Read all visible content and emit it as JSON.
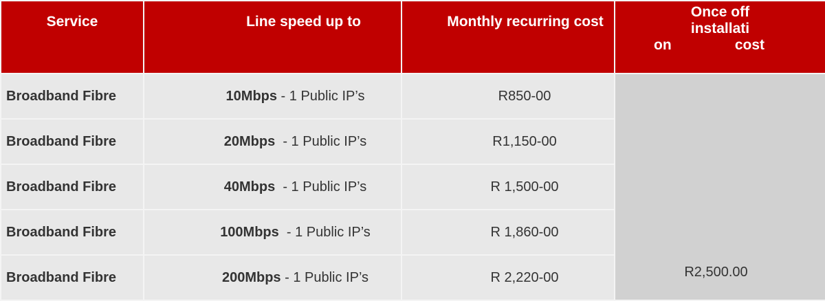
{
  "header": {
    "service": "Service",
    "line_speed": "Line speed up to",
    "monthly": "Monthly recurring cost",
    "once_off_line1": "Once off",
    "once_off_line2": "installati",
    "once_off_line3a": "on",
    "once_off_line3b": "cost"
  },
  "rows": [
    {
      "service": "Broadband Fibre",
      "speed": "10Mbps",
      "speed_rest": " - 1 Public IP’s",
      "monthly": "R850-00"
    },
    {
      "service": "Broadband Fibre",
      "speed": "20Mbps",
      "speed_rest": "  - 1 Public IP’s",
      "monthly": "R1,150-00"
    },
    {
      "service": "Broadband Fibre",
      "speed": "40Mbps",
      "speed_rest": "  - 1 Public IP’s",
      "monthly": "R 1,500-00"
    },
    {
      "service": "Broadband Fibre",
      "speed": "100Mbps",
      "speed_rest": "  - 1 Public IP’s",
      "monthly": "R 1,860-00"
    },
    {
      "service": "Broadband Fibre",
      "speed": "200Mbps",
      "speed_rest": " - 1 Public IP’s",
      "monthly": "R 2,220-00"
    }
  ],
  "installation_cost": "R2,500.00",
  "colors": {
    "header_bg": "#c00000",
    "row_bg": "#e8e8e8",
    "merged_bg": "#d1d1d1"
  }
}
